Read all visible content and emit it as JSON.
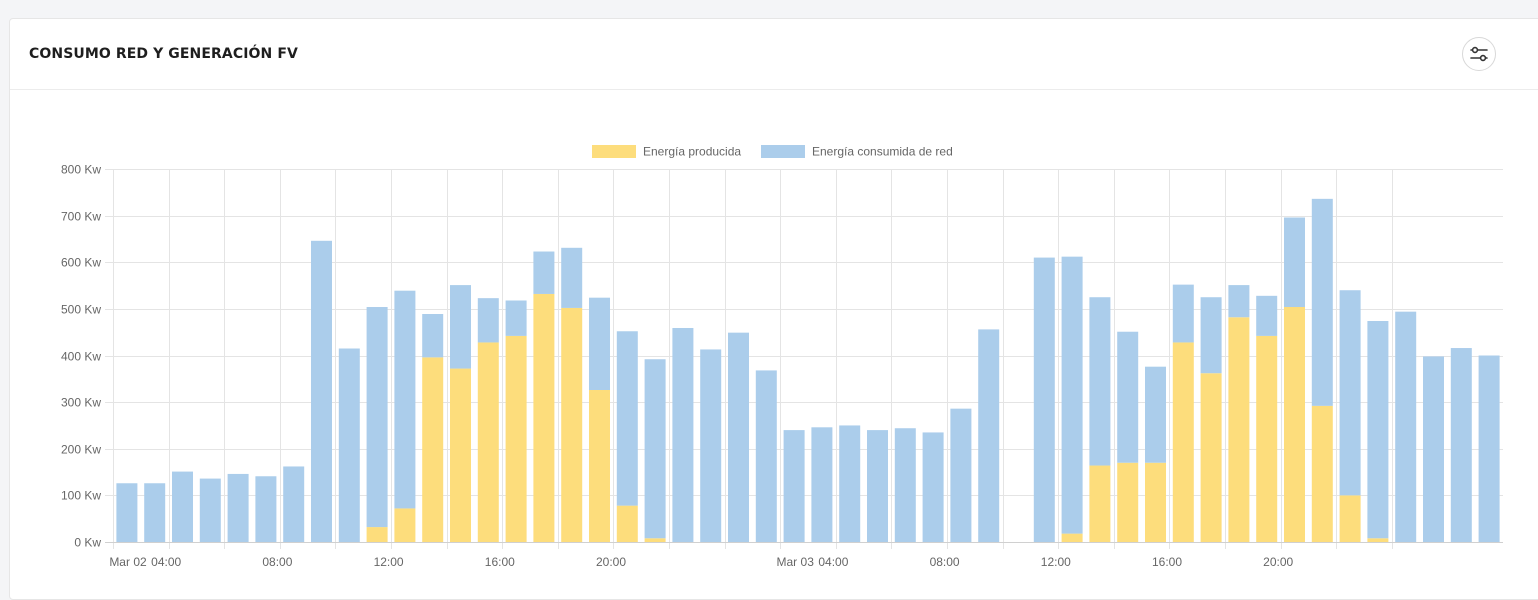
{
  "header": {
    "title": "CONSUMO RED Y GENERACIÓN FV",
    "settings_icon": "sliders-icon"
  },
  "colors": {
    "produced": "#fddd7c",
    "consumed": "#abcdeb",
    "grid": "#e4e4e4",
    "axis_text": "#666666"
  },
  "chart_data": {
    "type": "bar",
    "stacked": true,
    "legend": [
      "Energía producida",
      "Energía consumida de red"
    ],
    "legend_position": "top-center",
    "y_unit": "Kw",
    "ylim": [
      0,
      800
    ],
    "y_ticks": [
      "0 Kw",
      "100 Kw",
      "200 Kw",
      "300 Kw",
      "400 Kw",
      "500 Kw",
      "600 Kw",
      "700 Kw",
      "800 Kw"
    ],
    "x_tick_labels": [
      "Mar 02",
      "04:00",
      "08:00",
      "12:00",
      "16:00",
      "20:00",
      "Mar 03",
      "04:00",
      "08:00",
      "12:00",
      "16:00",
      "20:00"
    ],
    "x_tick_every": 4,
    "grid": true,
    "series": [
      {
        "name": "Energía producida",
        "values": [
          0,
          0,
          0,
          0,
          0,
          0,
          0,
          0,
          0,
          32,
          72,
          396,
          372,
          428,
          442,
          532,
          502,
          326,
          78,
          8,
          0,
          0,
          0,
          0,
          0,
          0,
          0,
          0,
          0,
          0,
          0,
          0,
          0,
          0,
          18,
          164,
          170,
          170,
          428,
          362,
          482,
          442,
          504,
          292,
          100,
          8,
          0,
          0,
          0,
          0
        ]
      },
      {
        "name": "Energía consumida de red",
        "values": [
          126,
          126,
          151,
          136,
          146,
          141,
          162,
          646,
          415,
          472,
          467,
          93,
          179,
          95,
          76,
          91,
          129,
          198,
          374,
          384,
          459,
          413,
          449,
          368,
          240,
          246,
          250,
          240,
          244,
          235,
          286,
          456,
          0,
          610,
          594,
          361,
          281,
          206,
          124,
          163,
          69,
          86,
          192,
          444,
          440,
          466,
          494,
          398,
          416,
          400
        ]
      }
    ]
  }
}
